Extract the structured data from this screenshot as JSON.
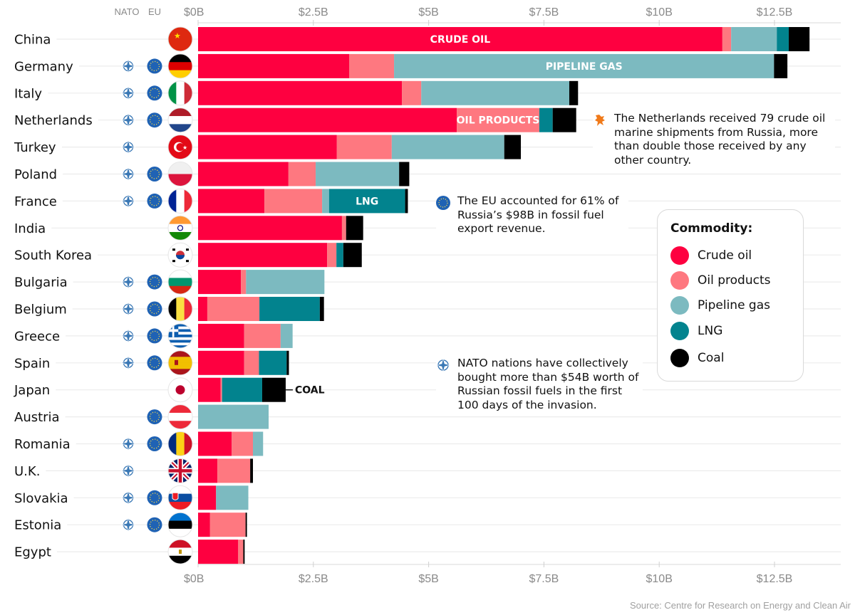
{
  "chart_data": {
    "type": "bar",
    "orientation": "horizontal",
    "stacked": true,
    "title": "",
    "xlabel": "",
    "ylabel": "",
    "xlim": [
      0,
      14
    ],
    "x_ticks": [
      0,
      2.5,
      5,
      7.5,
      10,
      12.5
    ],
    "x_tick_labels": [
      "$0B",
      "$2.5B",
      "$5B",
      "$7.5B",
      "$10B",
      "$12.5B"
    ],
    "unit": "USD billions",
    "grid": true,
    "legend_position": "right",
    "column_headers": {
      "nato": "NATO",
      "eu": "EU"
    },
    "categories": [
      "China",
      "Germany",
      "Italy",
      "Netherlands",
      "Turkey",
      "Poland",
      "France",
      "India",
      "South Korea",
      "Bulgaria",
      "Belgium",
      "Greece",
      "Spain",
      "Japan",
      "Austria",
      "Romania",
      "U.K.",
      "Slovakia",
      "Estonia",
      "Egypt"
    ],
    "nato": [
      false,
      true,
      true,
      true,
      true,
      true,
      true,
      false,
      false,
      true,
      true,
      true,
      true,
      false,
      false,
      true,
      true,
      true,
      true,
      false
    ],
    "eu": [
      false,
      true,
      true,
      true,
      false,
      true,
      true,
      false,
      false,
      true,
      true,
      true,
      true,
      false,
      true,
      true,
      false,
      true,
      true,
      false
    ],
    "flags": [
      "china-flag",
      "germany-flag",
      "italy-flag",
      "netherlands-flag",
      "turkey-flag",
      "poland-flag",
      "france-flag",
      "india-flag",
      "south-korea-flag",
      "bulgaria-flag",
      "belgium-flag",
      "greece-flag",
      "spain-flag",
      "japan-flag",
      "austria-flag",
      "romania-flag",
      "uk-flag",
      "slovakia-flag",
      "estonia-flag",
      "egypt-flag"
    ],
    "series": [
      {
        "name": "Crude oil",
        "key": "crude",
        "color": "#fe0040",
        "values": [
          11.37,
          3.28,
          4.42,
          5.61,
          3.01,
          1.96,
          1.44,
          3.12,
          2.8,
          0.93,
          0.2,
          1.0,
          1.0,
          0.49,
          0.0,
          0.73,
          0.42,
          0.39,
          0.26,
          0.87
        ]
      },
      {
        "name": "Oil products",
        "key": "oil",
        "color": "#fe7880",
        "values": [
          0.19,
          0.97,
          0.42,
          1.79,
          1.19,
          0.59,
          1.25,
          0.09,
          0.2,
          0.11,
          1.13,
          0.79,
          0.32,
          0.03,
          0.0,
          0.46,
          0.71,
          0.0,
          0.77,
          0.11
        ]
      },
      {
        "name": "Pipeline gas",
        "key": "pipeline",
        "color": "#7cbac0",
        "values": [
          0.99,
          8.24,
          3.21,
          0.0,
          2.44,
          1.81,
          0.15,
          0.0,
          0.0,
          1.7,
          0.0,
          0.26,
          0.0,
          0.0,
          1.53,
          0.22,
          0.0,
          0.7,
          0.0,
          0.0
        ]
      },
      {
        "name": "LNG",
        "key": "lng",
        "color": "#02838e",
        "values": [
          0.26,
          0.0,
          0.0,
          0.29,
          0.0,
          0.0,
          1.65,
          0.0,
          0.15,
          0.0,
          1.31,
          0.0,
          0.6,
          0.87,
          0.0,
          0.0,
          0.0,
          0.0,
          0.0,
          0.0
        ]
      },
      {
        "name": "Coal",
        "key": "coal",
        "color": "#000000",
        "values": [
          0.45,
          0.29,
          0.19,
          0.51,
          0.36,
          0.22,
          0.06,
          0.37,
          0.4,
          0.0,
          0.09,
          0.0,
          0.05,
          0.51,
          0.0,
          0.0,
          0.06,
          0.0,
          0.03,
          0.03
        ]
      }
    ],
    "segment_labels": [
      {
        "category": "China",
        "series": "Crude oil",
        "text": "CRUDE OIL"
      },
      {
        "category": "Germany",
        "series": "Pipeline gas",
        "text": "PIPELINE GAS"
      },
      {
        "category": "Netherlands",
        "series": "Oil products",
        "text": "OIL PRODUCTS"
      },
      {
        "category": "France",
        "series": "LNG",
        "text": "LNG"
      }
    ],
    "callout_labels": [
      {
        "category": "Japan",
        "series": "Coal",
        "text": "COAL"
      }
    ]
  },
  "legend": {
    "title": "Commodity:",
    "items": [
      {
        "label": "Crude oil",
        "color": "#fe0040"
      },
      {
        "label": "Oil products",
        "color": "#fe7880"
      },
      {
        "label": "Pipeline gas",
        "color": "#7cbac0"
      },
      {
        "label": "LNG",
        "color": "#02838e"
      },
      {
        "label": "Coal",
        "color": "#000000"
      }
    ]
  },
  "annotations": {
    "netherlands": {
      "icon": "dutch-lion-icon",
      "text": "The Netherlands received 79 crude oil marine shipments from Russia, more than double those received by any other country."
    },
    "eu": {
      "icon": "eu-icon",
      "text": "The EU accounted for 61% of Russia’s $98B in fossil fuel export revenue."
    },
    "nato": {
      "icon": "nato-icon",
      "text": "NATO nations have collectively bought more than $54B worth of Russian fossil fuels in the first 100 days of the invasion."
    }
  },
  "source": "Source: Centre for Research on Energy and Clean Air",
  "colors": {
    "nato": "#3a78b5",
    "eu": "#1f62b4",
    "grid": "#e6e6e6",
    "tick": "#8a8a8a",
    "lion": "#f07a1a"
  }
}
